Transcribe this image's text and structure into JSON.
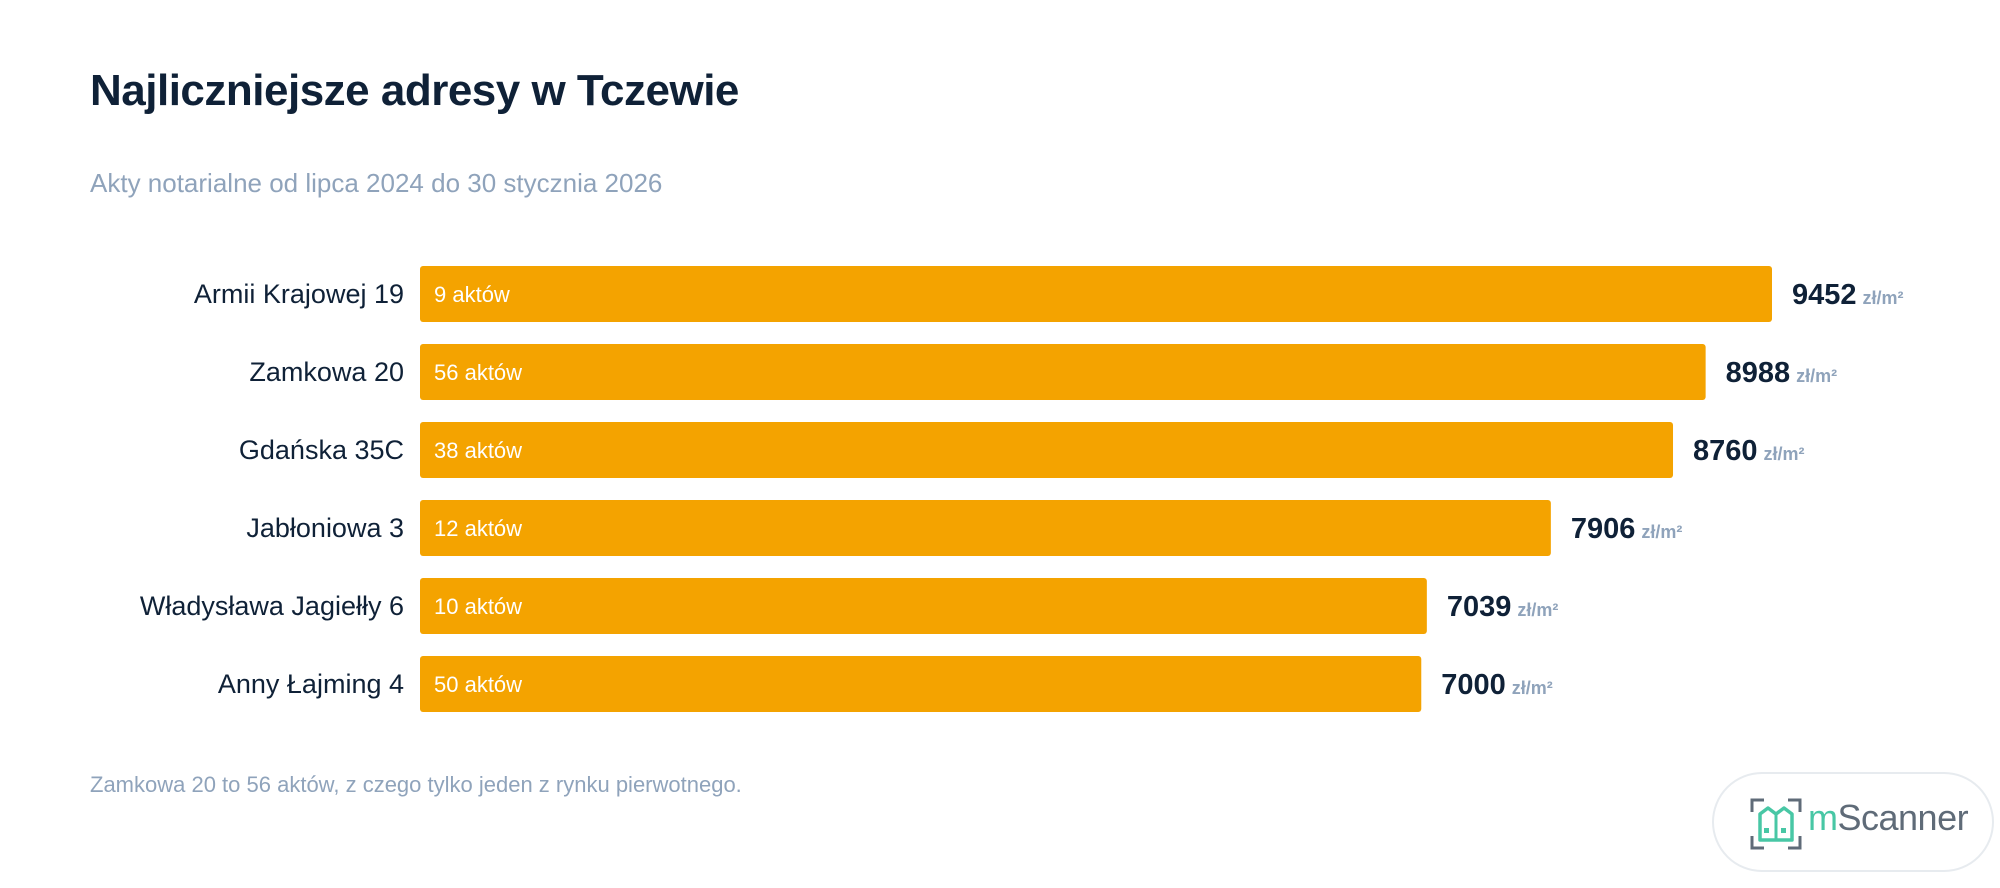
{
  "title": "Najliczniejsze adresy w Tczewie",
  "subtitle": "Akty notarialne od lipca 2024 do 30 stycznia 2026",
  "footnote": "Zamkowa 20 to 56 aktów, z czego tylko jeden z rynku pierwotnego.",
  "logo": {
    "prefix": "m",
    "name": "Scanner"
  },
  "colors": {
    "bar": "#f4a300",
    "label": "#0f2137",
    "muted": "#8fa3bb",
    "bar_text": "#ffffff"
  },
  "chart_data": {
    "type": "bar",
    "orientation": "horizontal",
    "categories": [
      "Armii Krajowej 19",
      "Zamkowa 20",
      "Gdańska 35C",
      "Jabłoniowa 3",
      "Władysława Jagiełły 6",
      "Anny Łajming 4"
    ],
    "values": [
      9452,
      8988,
      8760,
      7906,
      7039,
      7000
    ],
    "bar_labels": [
      "9 aktów",
      "56 aktów",
      "38 aktów",
      "12 aktów",
      "10 aktów",
      "50 aktów"
    ],
    "unit": "zł/m²",
    "title": "Najliczniejsze adresy w Tczewie",
    "subtitle": "Akty notarialne od lipca 2024 do 30 stycznia 2026",
    "xlabel": "",
    "ylabel": ""
  }
}
